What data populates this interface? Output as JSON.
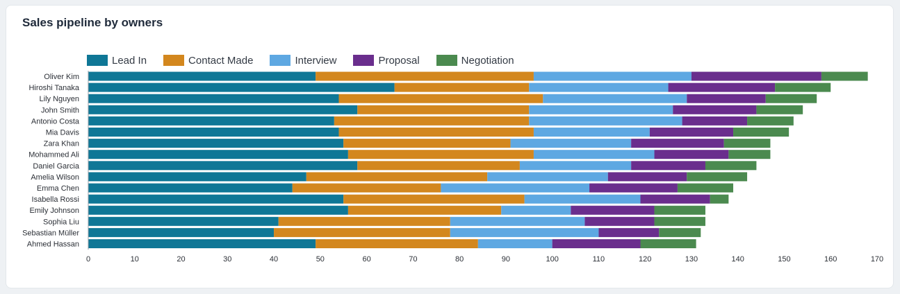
{
  "card": {
    "title": "Sales pipeline by owners"
  },
  "colors": {
    "Lead In": "#0f7796",
    "Contact Made": "#d3871e",
    "Interview": "#5ea8e2",
    "Proposal": "#6a2e8d",
    "Negotiation": "#4b8a4f"
  },
  "chart_data": {
    "type": "bar",
    "orientation": "horizontal",
    "stacked": true,
    "title": "Sales pipeline by owners",
    "xlabel": "",
    "ylabel": "",
    "xlim": [
      0,
      170
    ],
    "xticks": [
      0,
      10,
      20,
      30,
      40,
      50,
      60,
      70,
      80,
      90,
      100,
      110,
      120,
      130,
      140,
      150,
      160,
      170
    ],
    "legend_position": "top-left",
    "categories": [
      "Oliver Kim",
      "Hiroshi Tanaka",
      "Lily Nguyen",
      "John Smith",
      "Antonio Costa",
      "Mia Davis",
      "Zara Khan",
      "Mohammed Ali",
      "Daniel Garcia",
      "Amelia Wilson",
      "Emma Chen",
      "Isabella Rossi",
      "Emily Johnson",
      "Sophia Liu",
      "Sebastian Müller",
      "Ahmed Hassan"
    ],
    "series": [
      {
        "name": "Lead In",
        "values": [
          49,
          66,
          54,
          58,
          53,
          54,
          55,
          56,
          58,
          47,
          44,
          55,
          56,
          41,
          40,
          49
        ]
      },
      {
        "name": "Contact Made",
        "values": [
          47,
          29,
          44,
          37,
          42,
          42,
          36,
          40,
          35,
          39,
          32,
          39,
          33,
          37,
          38,
          35
        ]
      },
      {
        "name": "Interview",
        "values": [
          34,
          30,
          31,
          31,
          33,
          25,
          26,
          26,
          24,
          26,
          32,
          25,
          15,
          29,
          32,
          16
        ]
      },
      {
        "name": "Proposal",
        "values": [
          28,
          23,
          17,
          18,
          14,
          18,
          20,
          16,
          16,
          17,
          19,
          15,
          18,
          15,
          13,
          19
        ]
      },
      {
        "name": "Negotiation",
        "values": [
          10,
          12,
          11,
          10,
          10,
          12,
          10,
          9,
          11,
          13,
          12,
          4,
          11,
          11,
          9,
          12
        ]
      }
    ]
  }
}
